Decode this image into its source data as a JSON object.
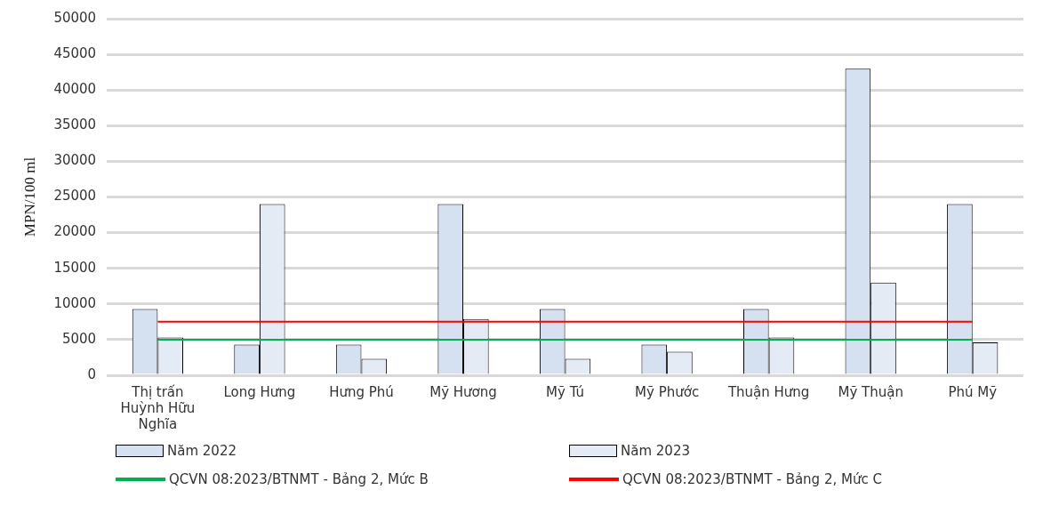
{
  "chart_data": {
    "type": "bar",
    "ylabel": "MPN/100 ml",
    "categories": [
      "Thị trấn Huỳnh Hữu Nghĩa",
      "Long Hưng",
      "Hưng Phú",
      "Mỹ Hương",
      "Mỹ Tú",
      "Mỹ Phước",
      "Thuận Hưng",
      "Mỹ Thuận",
      "Phú Mỹ"
    ],
    "series": [
      {
        "name": "Năm 2022",
        "color": "#d5e0f0",
        "values": [
          9300,
          4300,
          4300,
          24000,
          9300,
          4300,
          9300,
          43000,
          24000
        ]
      },
      {
        "name": "Năm 2023",
        "color": "#e4ebf5",
        "values": [
          5300,
          24000,
          2300,
          7900,
          2300,
          3300,
          5300,
          13000,
          4600
        ]
      },
      {
        "name": "QCVN 08:2023/BTNMT - Bảng 2, Mức B",
        "type": "line",
        "color": "#00b050",
        "values": [
          5000,
          5000,
          5000,
          5000,
          5000,
          5000,
          5000,
          5000,
          5000
        ]
      },
      {
        "name": "QCVN 08:2023/BTNMT - Bảng 2, Mức C",
        "type": "line",
        "color": "#ff0000",
        "values": [
          7500,
          7500,
          7500,
          7500,
          7500,
          7500,
          7500,
          7500,
          7500
        ]
      }
    ],
    "ylim": [
      0,
      50000
    ],
    "yticks": [
      0,
      5000,
      10000,
      15000,
      20000,
      25000,
      30000,
      35000,
      40000,
      45000,
      50000
    ],
    "grid": "y",
    "legend": "bottom",
    "marker": "none",
    "line_style": "solid"
  }
}
